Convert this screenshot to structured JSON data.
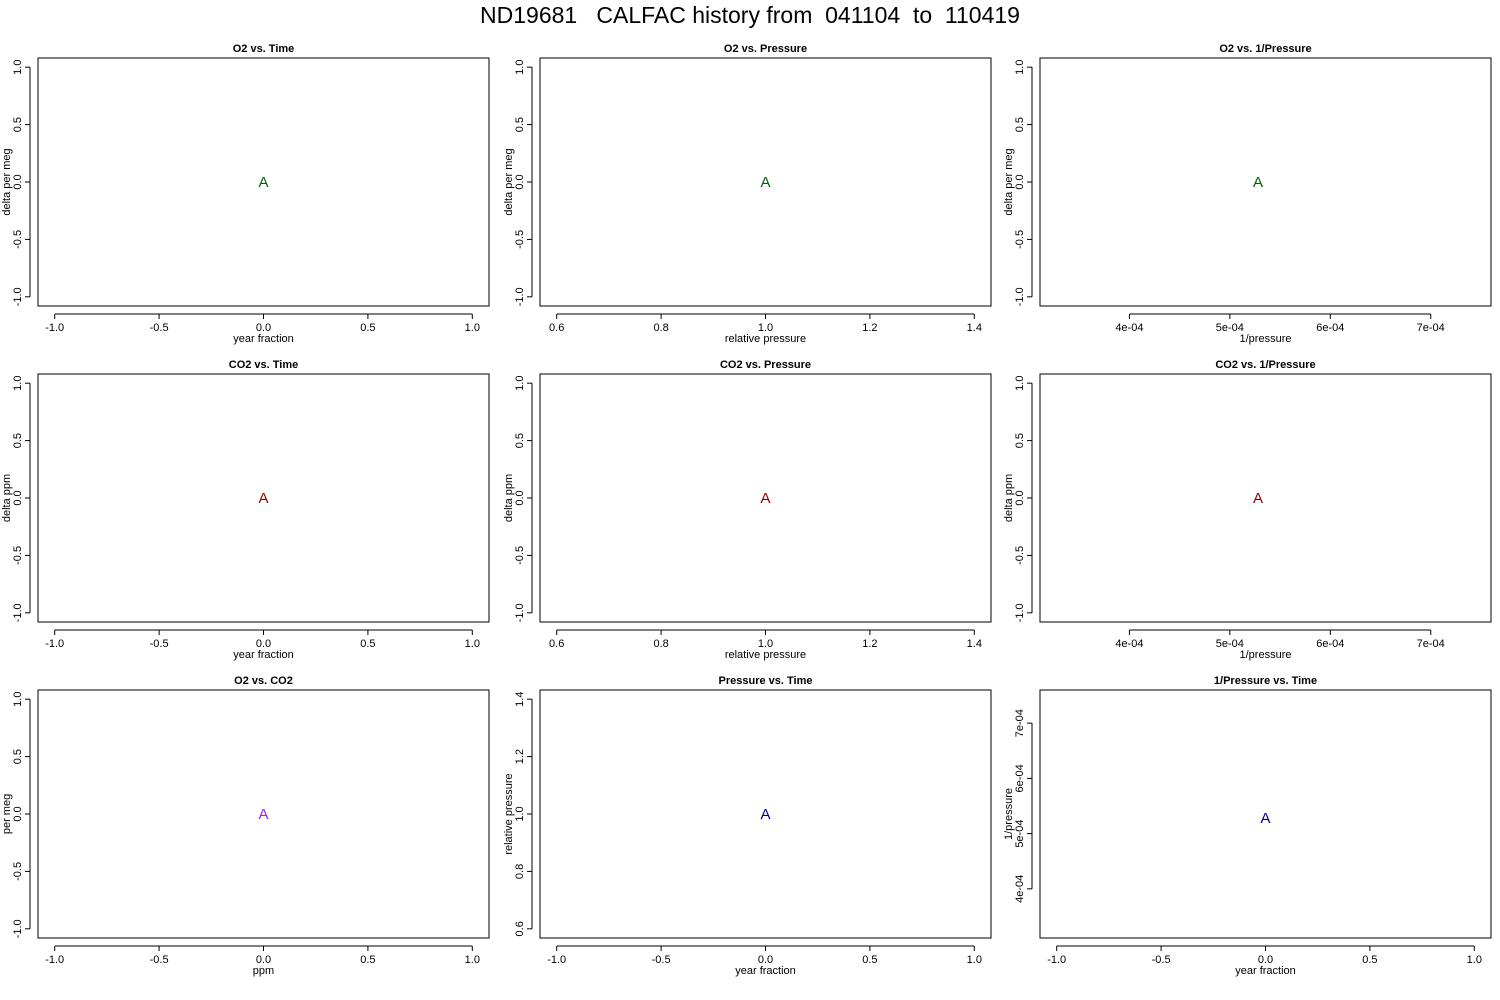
{
  "page": {
    "title": "ND19681   CALFAC history from  041104  to  110419"
  },
  "chart_data": [
    {
      "type": "scatter",
      "title": "O2 vs. Time",
      "xlabel": "year fraction",
      "ylabel": "delta per meg",
      "xlim": [
        -1.08,
        1.08
      ],
      "ylim": [
        -1.08,
        1.08
      ],
      "xticks": [
        {
          "v": -1.0,
          "label": "-1.0"
        },
        {
          "v": -0.5,
          "label": "-0.5"
        },
        {
          "v": 0.0,
          "label": "0.0"
        },
        {
          "v": 0.5,
          "label": "0.5"
        },
        {
          "v": 1.0,
          "label": "1.0"
        }
      ],
      "yticks": [
        {
          "v": -1.0,
          "label": "-1.0"
        },
        {
          "v": -0.5,
          "label": "-0.5"
        },
        {
          "v": 0.0,
          "label": "0.0"
        },
        {
          "v": 0.5,
          "label": "0.5"
        },
        {
          "v": 1.0,
          "label": "1.0"
        }
      ],
      "points": [
        {
          "x": 0.0,
          "y": 0.0,
          "label": "A"
        }
      ],
      "color": "#006400"
    },
    {
      "type": "scatter",
      "title": "O2 vs. Pressure",
      "xlabel": "relative pressure",
      "ylabel": "delta per meg",
      "xlim": [
        0.568,
        1.432
      ],
      "ylim": [
        -1.08,
        1.08
      ],
      "xticks": [
        {
          "v": 0.6,
          "label": "0.6"
        },
        {
          "v": 0.8,
          "label": "0.8"
        },
        {
          "v": 1.0,
          "label": "1.0"
        },
        {
          "v": 1.2,
          "label": "1.2"
        },
        {
          "v": 1.4,
          "label": "1.4"
        }
      ],
      "yticks": [
        {
          "v": -1.0,
          "label": "-1.0"
        },
        {
          "v": -0.5,
          "label": "-0.5"
        },
        {
          "v": 0.0,
          "label": "0.0"
        },
        {
          "v": 0.5,
          "label": "0.5"
        },
        {
          "v": 1.0,
          "label": "1.0"
        }
      ],
      "points": [
        {
          "x": 1.0,
          "y": 0.0,
          "label": "A"
        }
      ],
      "color": "#006400"
    },
    {
      "type": "scatter",
      "title": "O2 vs. 1/Pressure",
      "xlabel": "1/pressure",
      "ylabel": "delta per meg",
      "xlim": [
        0.000311,
        0.00076
      ],
      "ylim": [
        -1.08,
        1.08
      ],
      "xticks": [
        {
          "v": 0.0004,
          "label": "4e-04"
        },
        {
          "v": 0.0005,
          "label": "5e-04"
        },
        {
          "v": 0.0006,
          "label": "6e-04"
        },
        {
          "v": 0.0007,
          "label": "7e-04"
        }
      ],
      "yticks": [
        {
          "v": -1.0,
          "label": "-1.0"
        },
        {
          "v": -0.5,
          "label": "-0.5"
        },
        {
          "v": 0.0,
          "label": "0.0"
        },
        {
          "v": 0.5,
          "label": "0.5"
        },
        {
          "v": 1.0,
          "label": "1.0"
        }
      ],
      "points": [
        {
          "x": 0.000528,
          "y": 0.0,
          "label": "A"
        }
      ],
      "color": "#006400"
    },
    {
      "type": "scatter",
      "title": "CO2 vs. Time",
      "xlabel": "year fraction",
      "ylabel": "delta ppm",
      "xlim": [
        -1.08,
        1.08
      ],
      "ylim": [
        -1.08,
        1.08
      ],
      "xticks": [
        {
          "v": -1.0,
          "label": "-1.0"
        },
        {
          "v": -0.5,
          "label": "-0.5"
        },
        {
          "v": 0.0,
          "label": "0.0"
        },
        {
          "v": 0.5,
          "label": "0.5"
        },
        {
          "v": 1.0,
          "label": "1.0"
        }
      ],
      "yticks": [
        {
          "v": -1.0,
          "label": "-1.0"
        },
        {
          "v": -0.5,
          "label": "-0.5"
        },
        {
          "v": 0.0,
          "label": "0.0"
        },
        {
          "v": 0.5,
          "label": "0.5"
        },
        {
          "v": 1.0,
          "label": "1.0"
        }
      ],
      "points": [
        {
          "x": 0.0,
          "y": 0.0,
          "label": "A"
        }
      ],
      "color": "#8b0000"
    },
    {
      "type": "scatter",
      "title": "CO2 vs. Pressure",
      "xlabel": "relative pressure",
      "ylabel": "delta ppm",
      "xlim": [
        0.568,
        1.432
      ],
      "ylim": [
        -1.08,
        1.08
      ],
      "xticks": [
        {
          "v": 0.6,
          "label": "0.6"
        },
        {
          "v": 0.8,
          "label": "0.8"
        },
        {
          "v": 1.0,
          "label": "1.0"
        },
        {
          "v": 1.2,
          "label": "1.2"
        },
        {
          "v": 1.4,
          "label": "1.4"
        }
      ],
      "yticks": [
        {
          "v": -1.0,
          "label": "-1.0"
        },
        {
          "v": -0.5,
          "label": "-0.5"
        },
        {
          "v": 0.0,
          "label": "0.0"
        },
        {
          "v": 0.5,
          "label": "0.5"
        },
        {
          "v": 1.0,
          "label": "1.0"
        }
      ],
      "points": [
        {
          "x": 1.0,
          "y": 0.0,
          "label": "A"
        }
      ],
      "color": "#8b0000"
    },
    {
      "type": "scatter",
      "title": "CO2 vs. 1/Pressure",
      "xlabel": "1/pressure",
      "ylabel": "delta ppm",
      "xlim": [
        0.000311,
        0.00076
      ],
      "ylim": [
        -1.08,
        1.08
      ],
      "xticks": [
        {
          "v": 0.0004,
          "label": "4e-04"
        },
        {
          "v": 0.0005,
          "label": "5e-04"
        },
        {
          "v": 0.0006,
          "label": "6e-04"
        },
        {
          "v": 0.0007,
          "label": "7e-04"
        }
      ],
      "yticks": [
        {
          "v": -1.0,
          "label": "-1.0"
        },
        {
          "v": -0.5,
          "label": "-0.5"
        },
        {
          "v": 0.0,
          "label": "0.0"
        },
        {
          "v": 0.5,
          "label": "0.5"
        },
        {
          "v": 1.0,
          "label": "1.0"
        }
      ],
      "points": [
        {
          "x": 0.000528,
          "y": 0.0,
          "label": "A"
        }
      ],
      "color": "#8b0000"
    },
    {
      "type": "scatter",
      "title": "O2 vs. CO2",
      "xlabel": "ppm",
      "ylabel": "per meg",
      "xlim": [
        -1.08,
        1.08
      ],
      "ylim": [
        -1.08,
        1.08
      ],
      "xticks": [
        {
          "v": -1.0,
          "label": "-1.0"
        },
        {
          "v": -0.5,
          "label": "-0.5"
        },
        {
          "v": 0.0,
          "label": "0.0"
        },
        {
          "v": 0.5,
          "label": "0.5"
        },
        {
          "v": 1.0,
          "label": "1.0"
        }
      ],
      "yticks": [
        {
          "v": -1.0,
          "label": "-1.0"
        },
        {
          "v": -0.5,
          "label": "-0.5"
        },
        {
          "v": 0.0,
          "label": "0.0"
        },
        {
          "v": 0.5,
          "label": "0.5"
        },
        {
          "v": 1.0,
          "label": "1.0"
        }
      ],
      "points": [
        {
          "x": 0.0,
          "y": 0.0,
          "label": "A"
        }
      ],
      "color": "#a020f0"
    },
    {
      "type": "scatter",
      "title": "Pressure vs. Time",
      "xlabel": "year fraction",
      "ylabel": "relative pressure",
      "xlim": [
        -1.08,
        1.08
      ],
      "ylim": [
        0.568,
        1.432
      ],
      "xticks": [
        {
          "v": -1.0,
          "label": "-1.0"
        },
        {
          "v": -0.5,
          "label": "-0.5"
        },
        {
          "v": 0.0,
          "label": "0.0"
        },
        {
          "v": 0.5,
          "label": "0.5"
        },
        {
          "v": 1.0,
          "label": "1.0"
        }
      ],
      "yticks": [
        {
          "v": 0.6,
          "label": "0.6"
        },
        {
          "v": 0.8,
          "label": "0.8"
        },
        {
          "v": 1.0,
          "label": "1.0"
        },
        {
          "v": 1.2,
          "label": "1.2"
        },
        {
          "v": 1.4,
          "label": "1.4"
        }
      ],
      "points": [
        {
          "x": 0.0,
          "y": 1.0,
          "label": "A"
        }
      ],
      "color": "#00008b"
    },
    {
      "type": "scatter",
      "title": "1/Pressure vs. Time",
      "xlabel": "year fraction",
      "ylabel": "1/pressure",
      "xlim": [
        -1.08,
        1.08
      ],
      "ylim": [
        0.000311,
        0.00076
      ],
      "xticks": [
        {
          "v": -1.0,
          "label": "-1.0"
        },
        {
          "v": -0.5,
          "label": "-0.5"
        },
        {
          "v": 0.0,
          "label": "0.0"
        },
        {
          "v": 0.5,
          "label": "0.5"
        },
        {
          "v": 1.0,
          "label": "1.0"
        }
      ],
      "yticks": [
        {
          "v": 0.0004,
          "label": "4e-04"
        },
        {
          "v": 0.0005,
          "label": "5e-04"
        },
        {
          "v": 0.0006,
          "label": "6e-04"
        },
        {
          "v": 0.0007,
          "label": "7e-04"
        }
      ],
      "points": [
        {
          "x": 0.0,
          "y": 0.000528,
          "label": "A"
        }
      ],
      "color": "#00008b"
    }
  ]
}
